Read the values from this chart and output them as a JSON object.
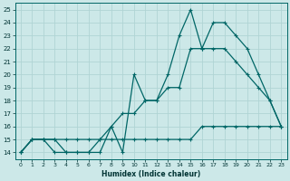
{
  "title": "",
  "xlabel": "Humidex (Indice chaleur)",
  "ylabel": "",
  "bg_color": "#cce8e8",
  "grid_color": "#b0d4d4",
  "line_color": "#006666",
  "x": [
    0,
    1,
    2,
    3,
    4,
    5,
    6,
    7,
    8,
    9,
    10,
    11,
    12,
    13,
    14,
    15,
    16,
    17,
    18,
    19,
    20,
    21,
    22,
    23
  ],
  "y_noisy": [
    14,
    15,
    15,
    14,
    14,
    14,
    14,
    14,
    16,
    14,
    20,
    18,
    18,
    20,
    23,
    25,
    22,
    24,
    24,
    23,
    22,
    20,
    18,
    16
  ],
  "y_smooth": [
    14,
    15,
    15,
    15,
    14,
    14,
    14,
    15,
    16,
    17,
    17,
    18,
    18,
    19,
    19,
    22,
    22,
    22,
    22,
    21,
    20,
    19,
    18,
    16
  ],
  "y_min": [
    14,
    15,
    15,
    15,
    15,
    15,
    15,
    15,
    15,
    15,
    15,
    15,
    15,
    15,
    15,
    15,
    16,
    16,
    16,
    16,
    16,
    16,
    16,
    16
  ],
  "ylim": [
    13.5,
    25.5
  ],
  "xlim": [
    -0.5,
    23.5
  ],
  "yticks": [
    14,
    15,
    16,
    17,
    18,
    19,
    20,
    21,
    22,
    23,
    24,
    25
  ],
  "xticks": [
    0,
    1,
    2,
    3,
    4,
    5,
    6,
    7,
    8,
    9,
    10,
    11,
    12,
    13,
    14,
    15,
    16,
    17,
    18,
    19,
    20,
    21,
    22,
    23
  ]
}
